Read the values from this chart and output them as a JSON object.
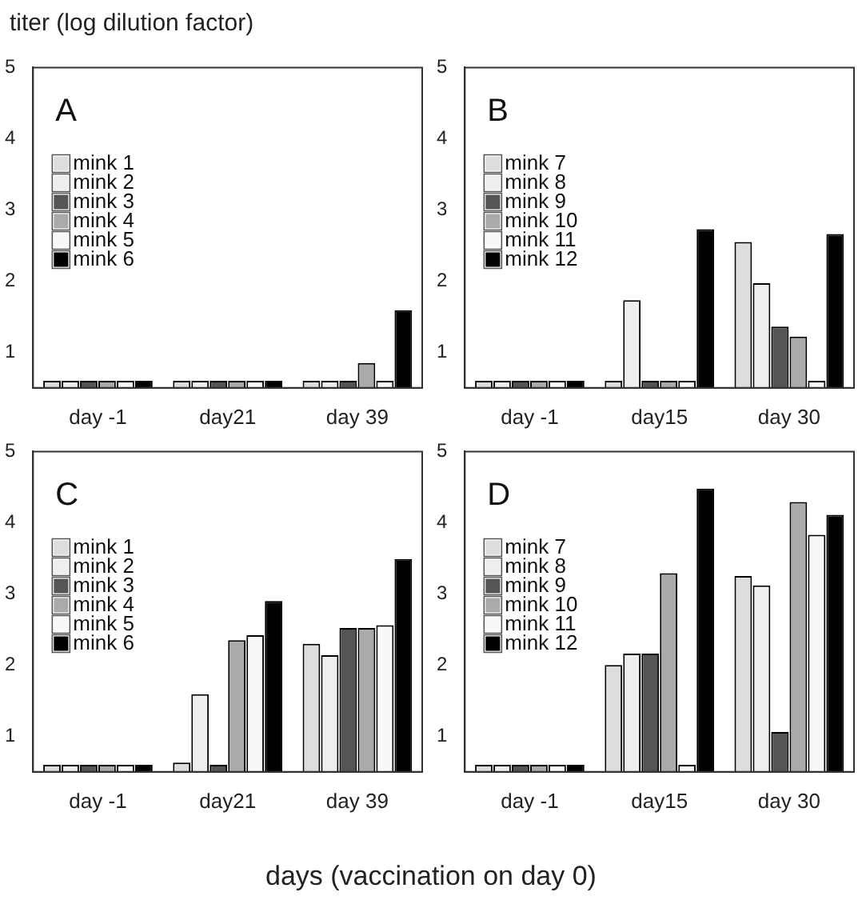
{
  "chart_data": [
    {
      "type": "bar",
      "title": "A",
      "ylabel": "titer (log dilution factor)",
      "categories": [
        "day -1",
        "day21",
        "day 39"
      ],
      "ylim": [
        0.5,
        5
      ],
      "yticks": [
        1,
        2,
        3,
        4,
        5
      ],
      "grid": false,
      "legend": "top left",
      "series": [
        {
          "name": "mink 1",
          "color": "#dddddd",
          "values": [
            0.6,
            0.6,
            0.6
          ]
        },
        {
          "name": "mink 2",
          "color": "#eeeeee",
          "values": [
            0.6,
            0.6,
            0.6
          ]
        },
        {
          "name": "mink 3",
          "color": "#555555",
          "values": [
            0.6,
            0.6,
            0.6
          ]
        },
        {
          "name": "mink 4",
          "color": "#aaaaaa",
          "values": [
            0.6,
            0.6,
            0.85
          ]
        },
        {
          "name": "mink 5",
          "color": "#f8f8f8",
          "values": [
            0.6,
            0.6,
            0.6
          ]
        },
        {
          "name": "mink 6",
          "color": "#000000",
          "values": [
            0.6,
            0.6,
            1.59
          ]
        }
      ]
    },
    {
      "type": "bar",
      "title": "B",
      "categories": [
        "day -1",
        "day15",
        "day 30"
      ],
      "ylim": [
        0.5,
        5
      ],
      "yticks": [
        1,
        2,
        3,
        4,
        5
      ],
      "grid": false,
      "legend": "top left",
      "series": [
        {
          "name": "mink 7",
          "color": "#dddddd",
          "values": [
            0.6,
            0.6,
            2.55
          ]
        },
        {
          "name": "mink 8",
          "color": "#eeeeee",
          "values": [
            0.6,
            1.73,
            1.97
          ]
        },
        {
          "name": "mink 9",
          "color": "#555555",
          "values": [
            0.6,
            0.6,
            1.36
          ]
        },
        {
          "name": "mink 10",
          "color": "#aaaaaa",
          "values": [
            0.6,
            0.6,
            1.22
          ]
        },
        {
          "name": "mink 11",
          "color": "#f8f8f8",
          "values": [
            0.6,
            0.6,
            0.6
          ]
        },
        {
          "name": "mink 12",
          "color": "#000000",
          "values": [
            0.6,
            2.73,
            2.66
          ]
        }
      ]
    },
    {
      "type": "bar",
      "title": "C",
      "xlabel": "days (vaccination on day 0)",
      "categories": [
        "day -1",
        "day21",
        "day 39"
      ],
      "ylim": [
        0.5,
        5
      ],
      "yticks": [
        1,
        2,
        3,
        4,
        5
      ],
      "grid": false,
      "legend": "top left",
      "series": [
        {
          "name": "mink 1",
          "color": "#dddddd",
          "values": [
            0.6,
            0.63,
            2.3
          ]
        },
        {
          "name": "mink 2",
          "color": "#eeeeee",
          "values": [
            0.6,
            1.59,
            2.14
          ]
        },
        {
          "name": "mink 3",
          "color": "#555555",
          "values": [
            0.6,
            0.6,
            2.52
          ]
        },
        {
          "name": "mink 4",
          "color": "#aaaaaa",
          "values": [
            0.6,
            2.35,
            2.52
          ]
        },
        {
          "name": "mink 5",
          "color": "#f8f8f8",
          "values": [
            0.6,
            2.42,
            2.56
          ]
        },
        {
          "name": "mink 6",
          "color": "#000000",
          "values": [
            0.6,
            2.9,
            3.49
          ]
        }
      ]
    },
    {
      "type": "bar",
      "title": "D",
      "categories": [
        "day -1",
        "day15",
        "day 30"
      ],
      "ylim": [
        0.5,
        5
      ],
      "yticks": [
        1,
        2,
        3,
        4,
        5
      ],
      "grid": false,
      "legend": "top left",
      "series": [
        {
          "name": "mink 7",
          "color": "#dddddd",
          "values": [
            0.6,
            2.0,
            3.25
          ]
        },
        {
          "name": "mink 8",
          "color": "#eeeeee",
          "values": [
            0.6,
            2.16,
            3.12
          ]
        },
        {
          "name": "mink 9",
          "color": "#555555",
          "values": [
            0.6,
            2.16,
            1.06
          ]
        },
        {
          "name": "mink 10",
          "color": "#aaaaaa",
          "values": [
            0.6,
            3.29,
            4.29
          ]
        },
        {
          "name": "mink 11",
          "color": "#f8f8f8",
          "values": [
            0.6,
            0.6,
            3.83
          ]
        },
        {
          "name": "mink 12",
          "color": "#000000",
          "values": [
            0.6,
            4.48,
            4.11
          ]
        }
      ]
    }
  ]
}
